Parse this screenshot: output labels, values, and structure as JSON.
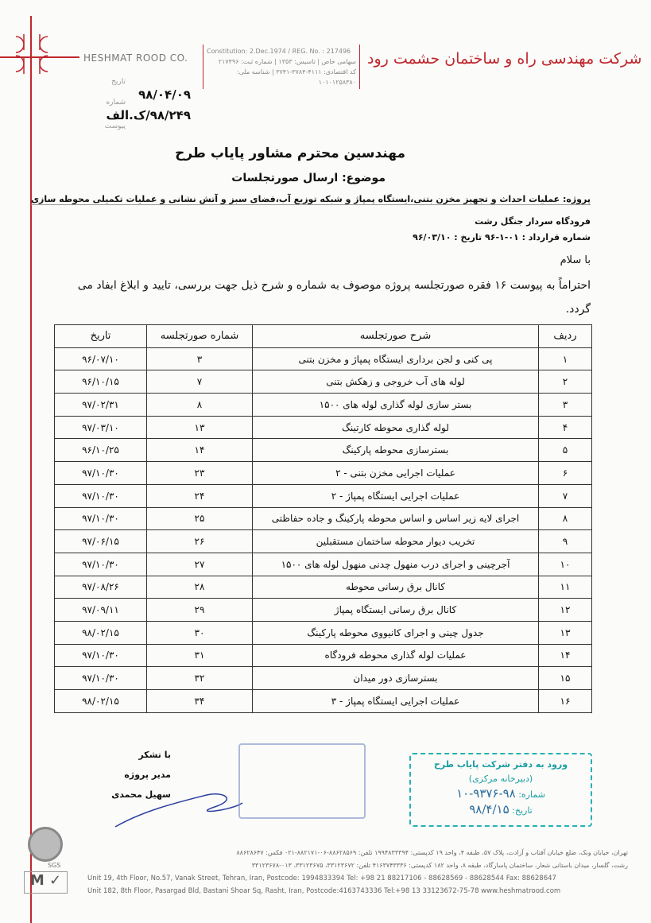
{
  "header": {
    "company_en": "HESHMAT ROOD CO.",
    "company_fa": "شرکت مهندسی راه و ساختمان حشمت رود",
    "reg_line1": "Constitution: 2.Dec.1974 / REG. No. : 217496",
    "reg_line2": "سهامی خاص | تاسیس: ۱۳۵۳ | شماره ثبت: ۲۱۷۴۹۶",
    "reg_line3": "کد اقتصادی: ۴۱۱۱-۳۷۸۴-۳۷۴۱ | شناسه ملی: ۱۰۱۰۱۲۵۸۳۸۰",
    "brand_color": "#c0272d"
  },
  "meta": {
    "date_label": "تاریخ",
    "date": "۹۸/۰۴/۰۹",
    "number_label": "شماره",
    "number": "۹۸/۲۴۹/ک.الف",
    "attachment_label": "پیوست"
  },
  "letter": {
    "addressee": "مهندسین محترم مشاور پایاب طرح",
    "subject": "موضوع: ارسال صورتجلسات",
    "project": "پروژه: عملیات احداث و تجهیز مخزن بتنی،ایستگاه پمپاژ و شبکه توزیع آب،فضای سبز و آتش نشانی و عملیات تکمیلی محوطه سازی",
    "project2": "فرودگاه سردار جنگل رشت",
    "contract": "شماره قرارداد : ۰۱-۱-۹۶ تاریخ : ۹۶/۰۳/۱۰",
    "greeting": "با سلام",
    "body": "احتراماً به پیوست ۱۶ فقره صورتجلسه پروژه موصوف به شماره و شرح ذیل جهت بررسی، تایید و ابلاغ ابفاد می گردد."
  },
  "table": {
    "headers": [
      "ردیف",
      "شرح صورتجلسه",
      "شماره صورتجلسه",
      "تاریخ"
    ],
    "rows": [
      [
        "۱",
        "پی کنی و لجن برداری ایستگاه پمپاژ و مخزن بتنی",
        "۳",
        "۹۶/۰۷/۱۰"
      ],
      [
        "۲",
        "لوله های آب خروجی و زهکش بتنی",
        "۷",
        "۹۶/۱۰/۱۵"
      ],
      [
        "۳",
        "بستر سازی لوله گذاری لوله های ۱۵۰۰",
        "۸",
        "۹۷/۰۲/۳۱"
      ],
      [
        "۴",
        "لوله گذاری محوطه کارتینگ",
        "۱۳",
        "۹۷/۰۳/۱۰"
      ],
      [
        "۵",
        "بسترسازی محوطه پارکینگ",
        "۱۴",
        "۹۶/۱۰/۲۵"
      ],
      [
        "۶",
        "عملیات اجرایی مخزن بتنی - ۲",
        "۲۳",
        "۹۷/۱۰/۳۰"
      ],
      [
        "۷",
        "عملیات اجرایی ایستگاه پمپاژ - ۲",
        "۲۴",
        "۹۷/۱۰/۳۰"
      ],
      [
        "۸",
        "اجرای لایه زیر اساس و اساس محوطه پارکینگ و جاده حفاظتی",
        "۲۵",
        "۹۷/۱۰/۳۰"
      ],
      [
        "۹",
        "تخریب دیوار محوطه ساختمان مستقبلین",
        "۲۶",
        "۹۷/۰۶/۱۵"
      ],
      [
        "۱۰",
        "آجرچینی و اجرای درب منهول چدنی منهول لوله های ۱۵۰۰",
        "۲۷",
        "۹۷/۱۰/۳۰"
      ],
      [
        "۱۱",
        "کانال برق رسانی محوطه",
        "۲۸",
        "۹۷/۰۸/۲۶"
      ],
      [
        "۱۲",
        "کانال برق رسانی ایستگاه پمپاژ",
        "۲۹",
        "۹۷/۰۹/۱۱"
      ],
      [
        "۱۳",
        "جدول چینی و اجرای کانیووی محوطه پارکینگ",
        "۳۰",
        "۹۸/۰۲/۱۵"
      ],
      [
        "۱۴",
        "عملیات لوله گذاری محوطه فرودگاه",
        "۳۱",
        "۹۷/۱۰/۳۰"
      ],
      [
        "۱۵",
        "بسترسازی دور میدان",
        "۳۲",
        "۹۷/۱۰/۳۰"
      ],
      [
        "۱۶",
        "عملیات اجرایی ایستگاه پمپاژ - ۳",
        "۳۴",
        "۹۸/۰۲/۱۵"
      ]
    ]
  },
  "signature": {
    "thanks": "با تشکر",
    "title": "مدیر پروژه",
    "name": "سهیل محمدی"
  },
  "stamp": {
    "line1": "ورود به دفتر شرکت پایاب طرح",
    "line2": "(دبیرخانه مرکزی)",
    "number_label": "شماره:",
    "number": "۹۸-۹۳۷۶-۱۰",
    "date_label": "تاریخ:",
    "date": "۹۸/۴/۱۵",
    "color": "#27b1b5"
  },
  "footer": {
    "fa1": "تهران، خیابان ونک، ضلع خیابان آفتاب و آزادت، پلاک ۵۷، طبقه ۴، واحد ۱۹   کدپستی: ۱۹۹۴۸۳۳۳۹۴   تلفن: ۸۸۶۲۸۵۶۹-۰۶-۸۸۲۱۷۱-۰۲۱ فکس: ۸۸۶۲۸۶۴۷",
    "fa2": "رشت، گلسار، میدان باستانی شعار، ساختمان پاسارگاد، طبقه ۸، واحد ۱۸۲   کدپستی: ۴۱۶۳۷۴۳۳۳۶   تلفن: ۳۳۱۲۳۶۷۲، ۳۳۱۲۳۶۷۵، ۰۱۳-۳۳۱۲۳۶۷۸",
    "en1": "Unit 19, 4th Floor, No.57, Vanak Street, Tehran, Iran,  Postcode: 1994833394   Tel: +98 21 88217106 - 88628569 - 88628544  Fax: 88628647",
    "en2": "Unit 182, 8th Floor, Pasargad Bld, Bastani Shoar Sq, Rasht, Iran, Postcode:4163743336  Tel:+98 13 33123672-75-78  www.heshmatrood.com",
    "sgs": "SGS"
  }
}
